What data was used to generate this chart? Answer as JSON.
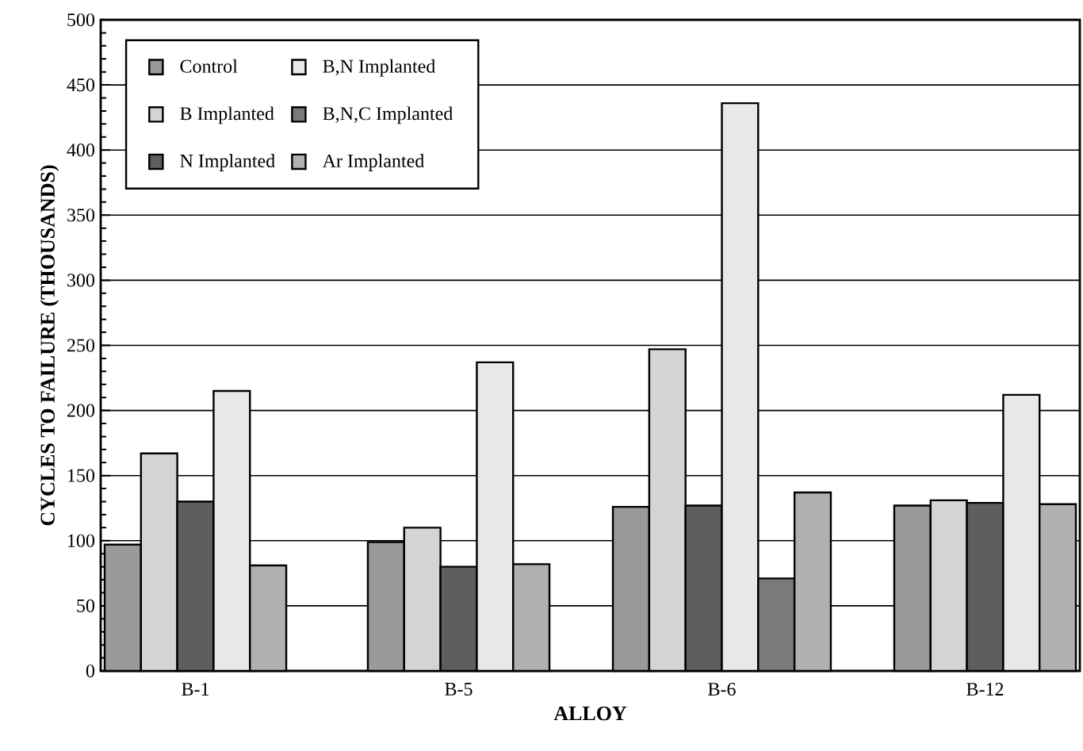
{
  "chart_data": {
    "type": "bar",
    "xlabel": "ALLOY",
    "ylabel": "CYCLES TO FAILURE (THOUSANDS)",
    "categories": [
      "B-1",
      "B-5",
      "B-6",
      "B-12"
    ],
    "series": [
      {
        "name": "Control",
        "color": "#9a9a9a",
        "values": [
          97,
          99,
          126,
          127
        ]
      },
      {
        "name": "B Implanted",
        "color": "#d4d4d4",
        "values": [
          167,
          110,
          247,
          131
        ]
      },
      {
        "name": "N Implanted",
        "color": "#5e5e5e",
        "values": [
          130,
          80,
          127,
          129
        ]
      },
      {
        "name": "B,N Implanted",
        "color": "#e8e8e8",
        "values": [
          215,
          237,
          436,
          212
        ]
      },
      {
        "name": "B,N,C Implanted",
        "color": "#7a7a7a",
        "values": [
          null,
          null,
          71,
          null
        ]
      },
      {
        "name": "Ar Implanted",
        "color": "#b0b0b0",
        "values": [
          81,
          82,
          137,
          128
        ]
      }
    ],
    "ylim": [
      0,
      500
    ],
    "yticks": [
      0,
      {
        "value": 10,
        "label": null
      },
      {
        "value": 20,
        "label": null
      },
      {
        "value": 30,
        "label": null
      },
      {
        "value": 40,
        "label": null
      },
      50,
      {
        "value": 60,
        "label": null
      },
      {
        "value": 70,
        "label": null
      },
      {
        "value": 80,
        "label": null
      },
      {
        "value": 90,
        "label": null
      },
      100,
      {
        "value": 110,
        "label": null
      },
      {
        "value": 120,
        "label": null
      },
      {
        "value": 130,
        "label": null
      },
      {
        "value": 140,
        "label": null
      },
      150,
      {
        "value": 160,
        "label": null
      },
      {
        "value": 170,
        "label": null
      },
      {
        "value": 180,
        "label": null
      },
      {
        "value": 190,
        "label": null
      },
      200,
      {
        "value": 210,
        "label": null
      },
      {
        "value": 220,
        "label": null
      },
      {
        "value": 230,
        "label": null
      },
      {
        "value": 240,
        "label": null
      },
      250,
      {
        "value": 260,
        "label": null
      },
      {
        "value": 270,
        "label": null
      },
      {
        "value": 280,
        "label": null
      },
      {
        "value": 290,
        "label": null
      },
      300,
      {
        "value": 310,
        "label": null
      },
      {
        "value": 320,
        "label": null
      },
      {
        "value": 330,
        "label": null
      },
      {
        "value": 340,
        "label": null
      },
      350,
      {
        "value": 360,
        "label": null
      },
      {
        "value": 370,
        "label": null
      },
      {
        "value": 380,
        "label": null
      },
      {
        "value": 390,
        "label": null
      },
      400,
      {
        "value": 410,
        "label": null
      },
      {
        "value": 420,
        "label": null
      },
      {
        "value": 430,
        "label": null
      },
      {
        "value": 440,
        "label": null
      },
      450,
      {
        "value": 460,
        "label": null
      },
      {
        "value": 470,
        "label": null
      },
      {
        "value": 480,
        "label": null
      },
      {
        "value": 490,
        "label": null
      },
      500
    ],
    "grid": "y",
    "legend": "top left"
  }
}
